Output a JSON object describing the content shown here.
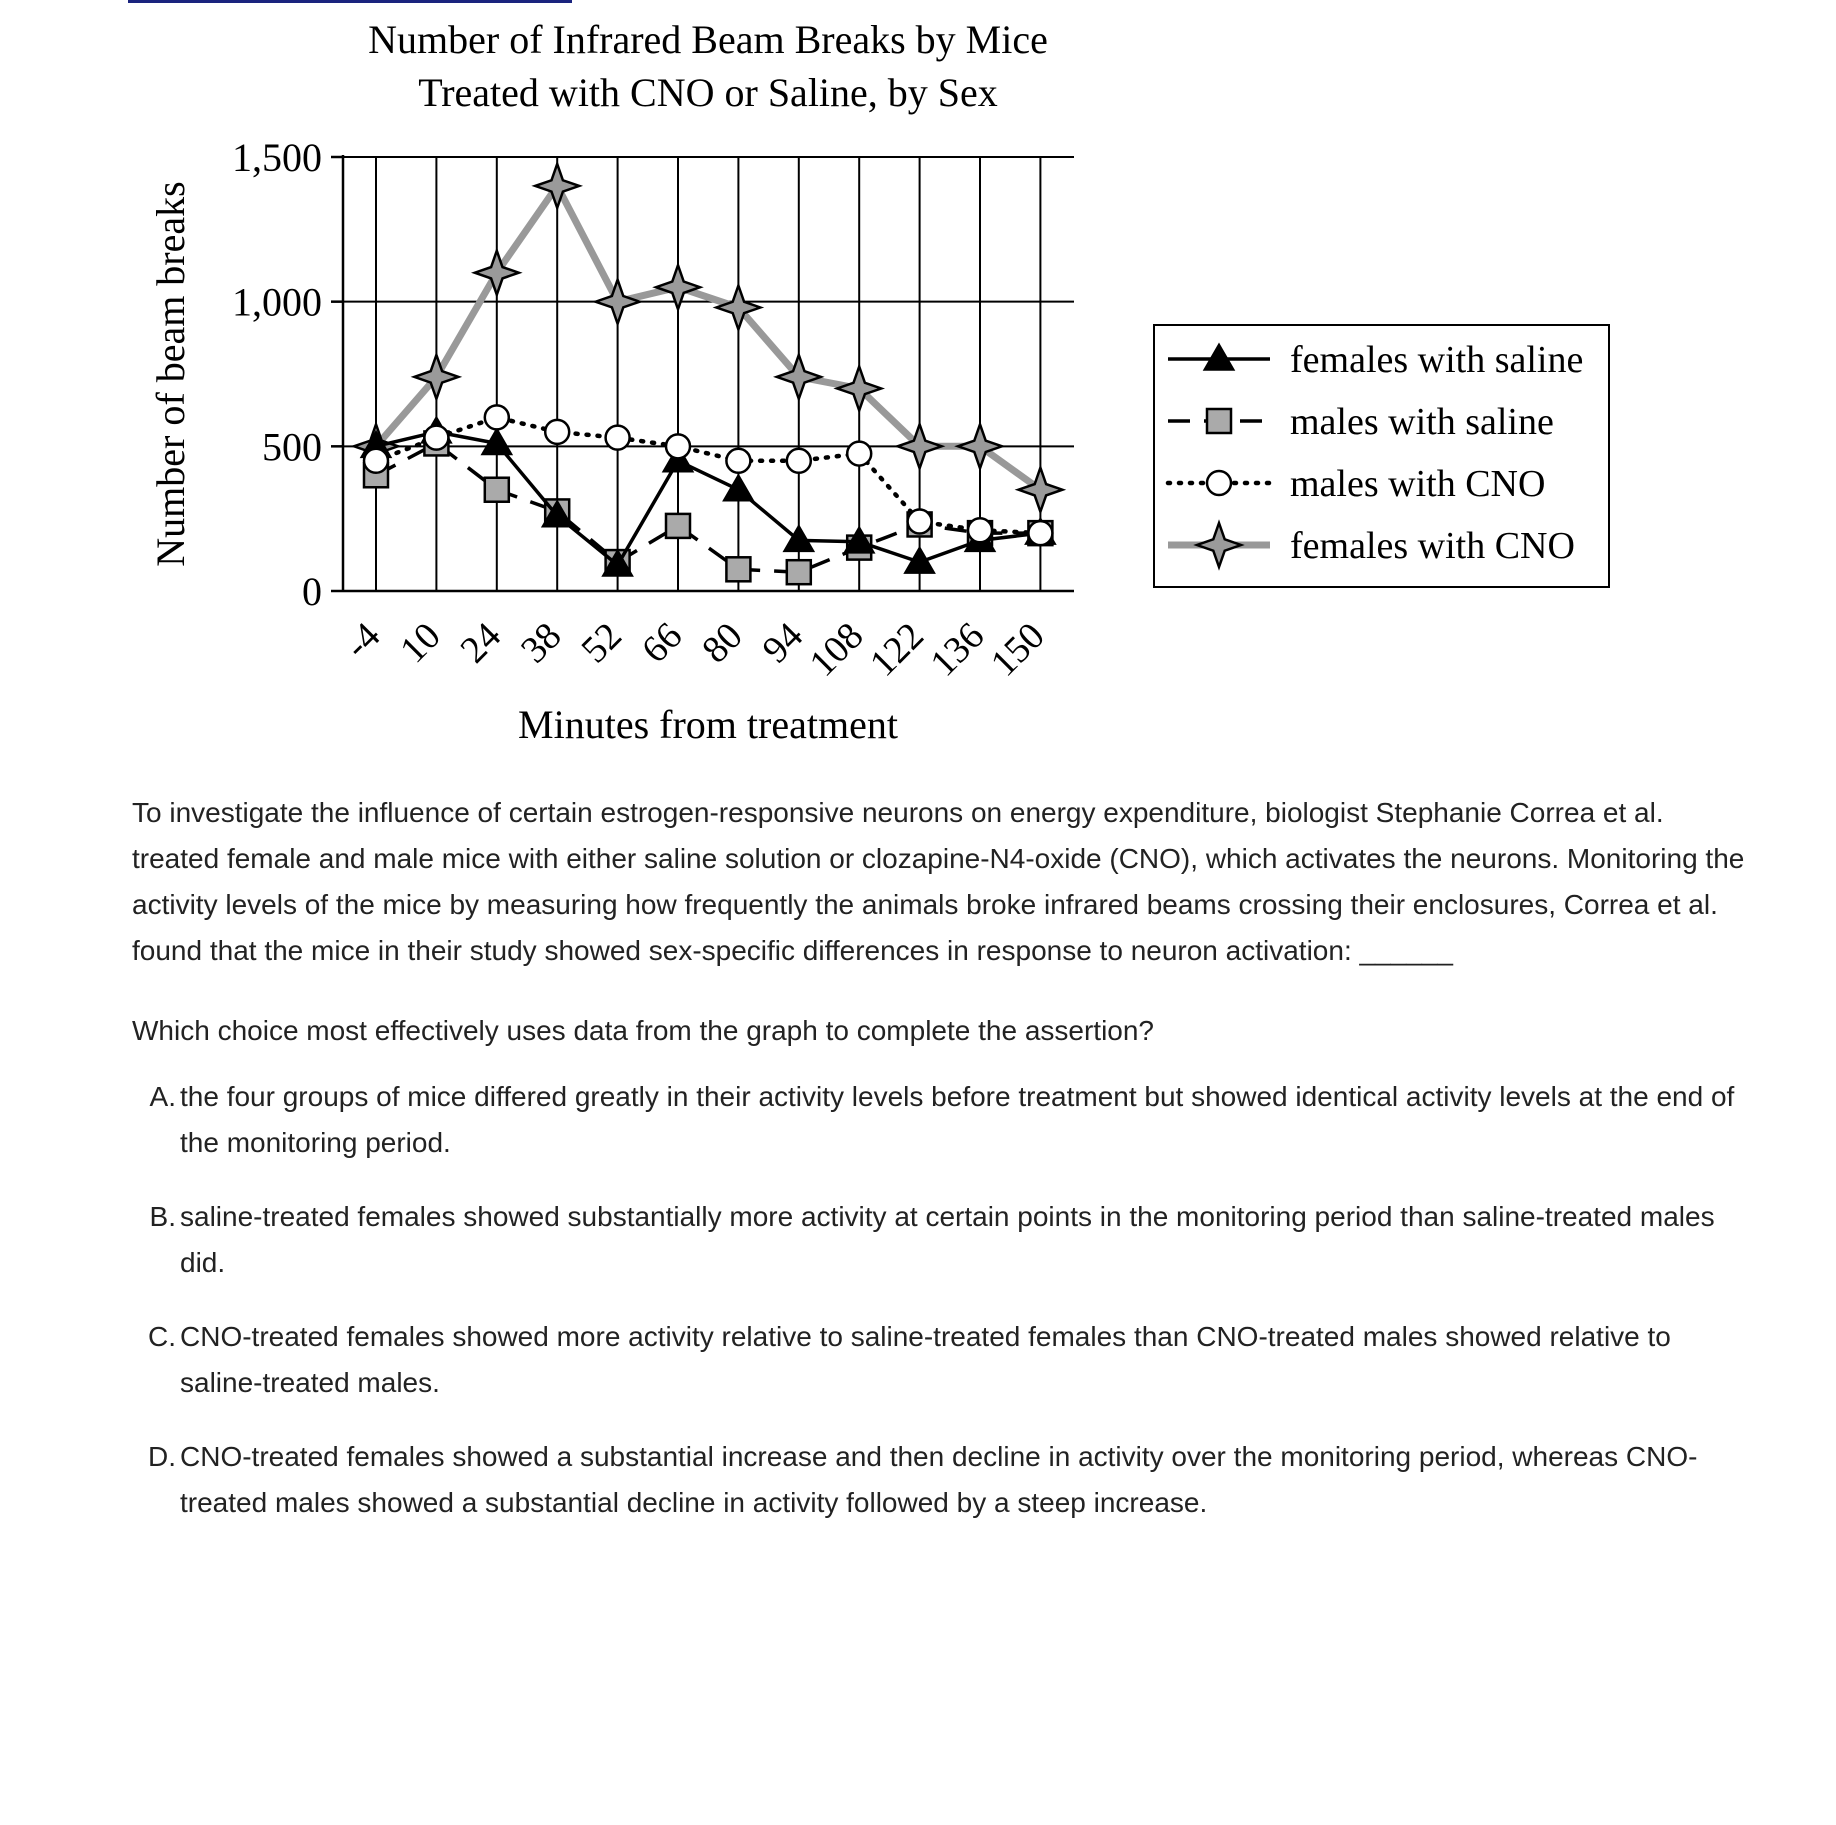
{
  "chart_data": {
    "type": "line",
    "title_lines": [
      "Number of Infrared Beam Breaks by Mice",
      "Treated with CNO or Saline, by Sex"
    ],
    "xlabel": "Minutes from treatment",
    "ylabel": "Number of beam breaks",
    "x": [
      -4,
      10,
      24,
      38,
      52,
      66,
      80,
      94,
      108,
      122,
      136,
      150
    ],
    "x_tick_labels": [
      "-4",
      "10",
      "24",
      "38",
      "52",
      "66",
      "80",
      "94",
      "108",
      "122",
      "136",
      "150"
    ],
    "ylim": [
      0,
      1500
    ],
    "y_ticks": [
      0,
      500,
      1000,
      1500
    ],
    "y_tick_labels": [
      "0",
      "500",
      "1,000",
      "1,500"
    ],
    "grid": true,
    "legend_position": "right",
    "series": [
      {
        "name": "females with saline",
        "marker": "triangle",
        "line": "solid",
        "color": "#000000",
        "values": [
          500,
          550,
          510,
          260,
          90,
          450,
          350,
          175,
          170,
          100,
          175,
          200
        ]
      },
      {
        "name": "males with saline",
        "marker": "square",
        "line": "dashed",
        "color": "#000000",
        "values": [
          400,
          510,
          350,
          275,
          100,
          225,
          75,
          65,
          150,
          230,
          200,
          200
        ]
      },
      {
        "name": "males with CNO",
        "marker": "circle",
        "line": "dotted",
        "color": "#000000",
        "values": [
          450,
          530,
          600,
          550,
          530,
          500,
          450,
          450,
          475,
          240,
          210,
          200
        ]
      },
      {
        "name": "females with CNO",
        "marker": "star",
        "line": "solid",
        "color": "#999999",
        "values": [
          500,
          740,
          1100,
          1400,
          1000,
          1050,
          980,
          740,
          700,
          500,
          500,
          350
        ]
      }
    ]
  },
  "passage": "To investigate the influence of certain estrogen-responsive neurons on energy expenditure, biologist Stephanie Correa et al. treated female and male mice with either saline solution or clozapine-N4-oxide (CNO), which activates the neurons. Monitoring the activity levels of the mice by measuring how frequently the animals broke infrared beams crossing their enclosures, Correa et al. found that the mice in their study showed sex-specific differences in response to neuron activation: ______",
  "prompt": "Which choice most effectively uses data from the graph to complete the assertion?",
  "choices": [
    {
      "letter": "A.",
      "text": "the four groups of mice differed greatly in their activity levels before treatment but showed identical activity levels at the end of the monitoring period."
    },
    {
      "letter": "B.",
      "text": "saline-treated females showed substantially more activity at certain points in the monitoring period than saline-treated males did."
    },
    {
      "letter": "C.",
      "text": "CNO-treated females showed more activity relative to saline-treated females than CNO-treated males showed relative to saline-treated males."
    },
    {
      "letter": "D.",
      "text": "CNO-treated females showed a substantial increase and then decline in activity over the monitoring period, whereas CNO-treated males showed a substantial decline in activity followed by a steep increase."
    }
  ]
}
